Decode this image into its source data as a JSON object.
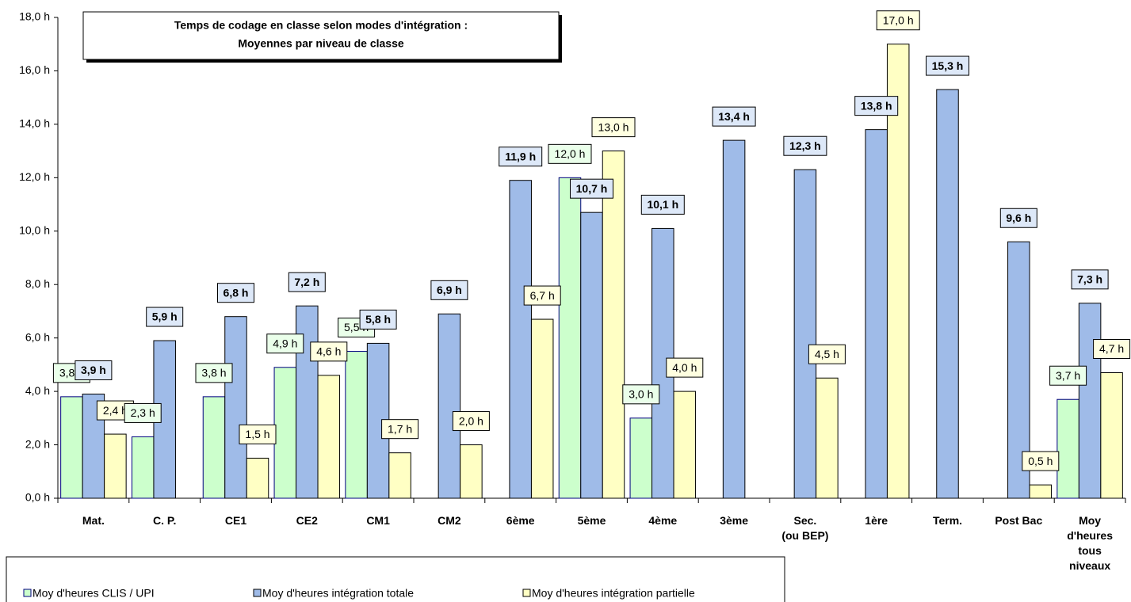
{
  "chart_data": {
    "type": "bar",
    "title": [
      "Temps de codage en classe selon modes d'intégration :",
      "Moyennes par niveau de classe"
    ],
    "categories": [
      "Mat.",
      "C.  P.",
      "CE1",
      "CE2",
      "CM1",
      "CM2",
      "6ème",
      "5ème",
      "4ème",
      "3ème",
      "Sec.\n(ou BEP)",
      "1ère",
      "Term.",
      "Post Bac",
      "Moy\nd'heures\ntous\nniveaux"
    ],
    "series": [
      {
        "name": "Moy d'heures CLIS / UPI",
        "color": "#ccffcc",
        "edge": "#000080",
        "label_color": "#eaffea",
        "label_bold": false,
        "values": [
          3.8,
          2.3,
          3.8,
          4.9,
          5.5,
          null,
          null,
          12.0,
          3.0,
          null,
          null,
          null,
          null,
          null,
          3.7
        ],
        "value_labels": [
          "3,8 h",
          "2,3 h",
          "3,8 h",
          "4,9 h",
          "5,5 h",
          null,
          null,
          "12,0 h",
          "3,0 h",
          null,
          null,
          null,
          null,
          null,
          "3,7 h"
        ]
      },
      {
        "name": "Moy d'heures intégration totale",
        "color": "#9fbbe8",
        "edge": "#000000",
        "label_color": "#dde8f8",
        "label_bold": true,
        "values": [
          3.9,
          5.9,
          6.8,
          7.2,
          5.8,
          6.9,
          11.9,
          10.7,
          10.1,
          13.4,
          12.3,
          13.8,
          15.3,
          9.6,
          7.3
        ],
        "value_labels": [
          "3,9 h",
          "5,9 h",
          "6,8 h",
          "7,2 h",
          "5,8 h",
          "6,9 h",
          "11,9 h",
          "10,7 h",
          "10,1 h",
          "13,4 h",
          "12,3 h",
          "13,8 h",
          "15,3 h",
          "9,6 h",
          "7,3 h"
        ]
      },
      {
        "name": "Moy d'heures intégration partielle",
        "color": "#ffffc4",
        "edge": "#000000",
        "label_color": "#ffffe0",
        "label_bold": false,
        "values": [
          2.4,
          null,
          1.5,
          4.6,
          1.7,
          2.0,
          6.7,
          13.0,
          4.0,
          null,
          4.5,
          17.0,
          null,
          0.5,
          4.7
        ],
        "value_labels": [
          "2,4 h",
          null,
          "1,5 h",
          "4,6 h",
          "1,7 h",
          "2,0 h",
          "6,7 h",
          "13,0 h",
          "4,0 h",
          null,
          "4,5 h",
          "17,0 h",
          null,
          "0,5 h",
          "4,7 h"
        ]
      }
    ],
    "ylim": [
      0,
      18
    ],
    "yticks": [
      {
        "value": 0,
        "label": "0,0 h"
      },
      {
        "value": 2,
        "label": "2,0 h"
      },
      {
        "value": 4,
        "label": "4,0 h"
      },
      {
        "value": 6,
        "label": "6,0 h"
      },
      {
        "value": 8,
        "label": "8,0 h"
      },
      {
        "value": 10,
        "label": "10,0 h"
      },
      {
        "value": 12,
        "label": "12,0 h"
      },
      {
        "value": 14,
        "label": "14,0 h"
      },
      {
        "value": 16,
        "label": "16,0 h"
      },
      {
        "value": 18,
        "label": "18,0 h"
      }
    ],
    "grid": false,
    "legend": "bottom"
  }
}
